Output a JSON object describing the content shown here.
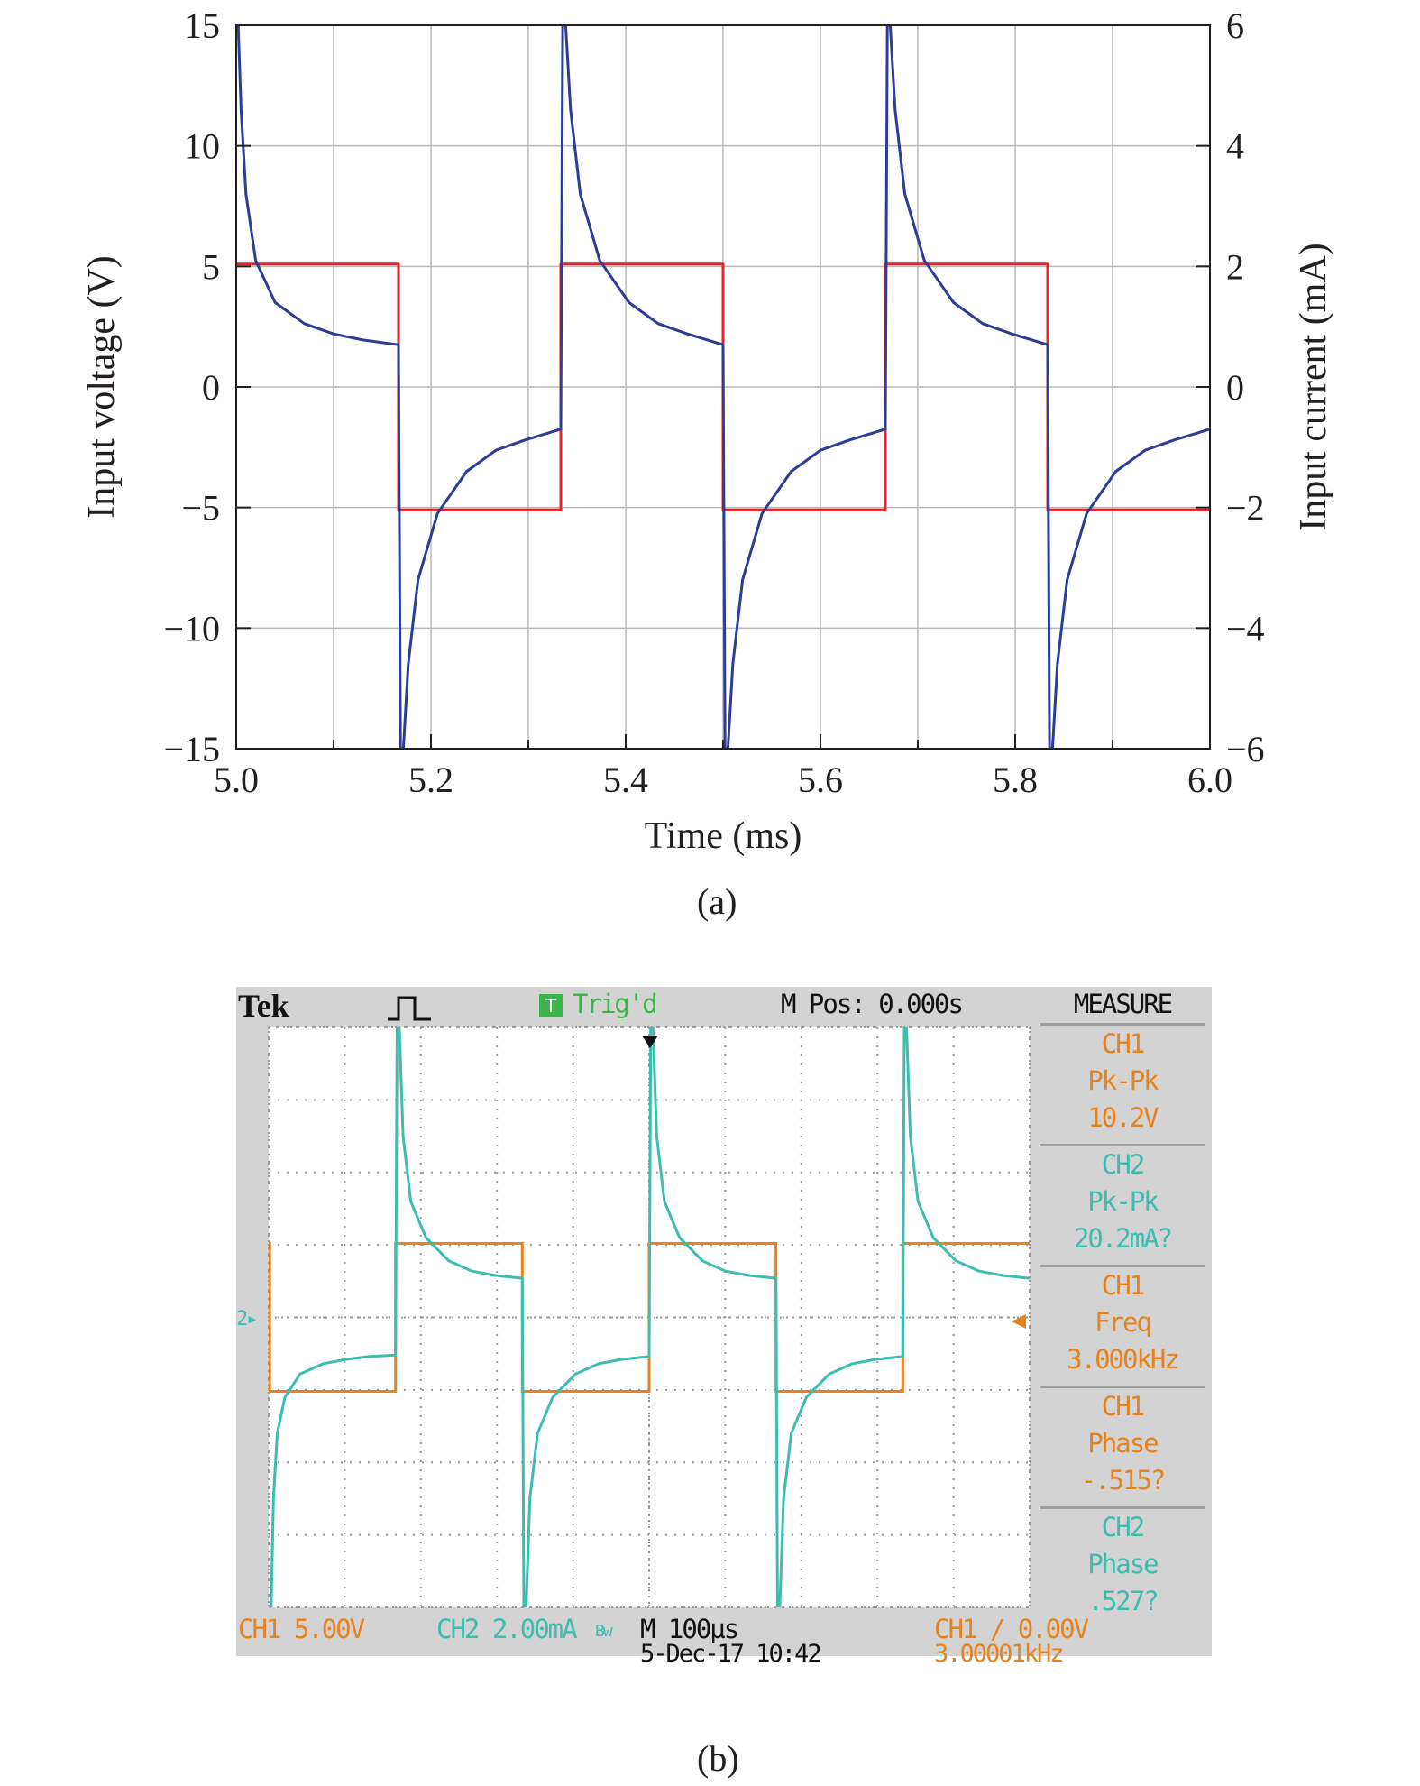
{
  "chart_data": [
    {
      "type": "line",
      "panel_label": "(a)",
      "xlabel": "Time (ms)",
      "ylabel": "Input voltage (V)",
      "y2label": "Input current (mA)",
      "xlim": [
        5.0,
        6.0
      ],
      "ylim": [
        -15,
        15
      ],
      "y2lim": [
        -6,
        6
      ],
      "xticks": [
        "5.0",
        "5.2",
        "5.4",
        "5.6",
        "5.8",
        "6.0"
      ],
      "yticks": [
        "15",
        "10",
        "5",
        "0",
        "−5",
        "−10",
        "−15"
      ],
      "y2ticks": [
        "6",
        "4",
        "2",
        "0",
        "−2",
        "−4",
        "−6"
      ],
      "grid": true,
      "series": [
        {
          "color": "#e3262b",
          "axis": "left",
          "x": [
            5.0,
            5.1667,
            5.1667,
            5.3333,
            5.3333,
            5.5,
            5.5,
            5.6667,
            5.6667,
            5.8333,
            5.8333,
            6.0
          ],
          "y": [
            5.1,
            5.1,
            -5.1,
            -5.1,
            5.1,
            5.1,
            -5.1,
            -5.1,
            5.1,
            5.1,
            -5.1,
            -5.1
          ]
        },
        {
          "color": "#2e3c96",
          "axis": "right",
          "x": [
            5.0,
            5.002,
            5.005,
            5.01,
            5.02,
            5.04,
            5.07,
            5.1,
            5.13,
            5.1667,
            5.1687,
            5.1717,
            5.1767,
            5.1867,
            5.2067,
            5.2367,
            5.2667,
            5.2967,
            5.3333,
            5.3353,
            5.3383,
            5.3433,
            5.3533,
            5.3733,
            5.4033,
            5.4333,
            5.4633,
            5.5,
            5.502,
            5.505,
            5.51,
            5.52,
            5.54,
            5.57,
            5.6,
            5.63,
            5.6667,
            5.6687,
            5.6717,
            5.6767,
            5.6867,
            5.7067,
            5.7367,
            5.7667,
            5.7967,
            5.8333,
            5.8353,
            5.8383,
            5.8433,
            5.8533,
            5.8733,
            5.9033,
            5.9333,
            5.9633,
            6.0
          ],
          "y": [
            6.0,
            6.0,
            4.6,
            3.2,
            2.1,
            1.4,
            1.05,
            0.88,
            0.78,
            0.7,
            -6.0,
            -6.0,
            -4.6,
            -3.2,
            -2.1,
            -1.4,
            -1.05,
            -0.88,
            -0.7,
            6.0,
            6.0,
            4.6,
            3.2,
            2.1,
            1.4,
            1.05,
            0.88,
            0.7,
            -6.0,
            -6.0,
            -4.6,
            -3.2,
            -2.1,
            -1.4,
            -1.05,
            -0.88,
            -0.7,
            6.0,
            6.0,
            4.6,
            3.2,
            2.1,
            1.4,
            1.05,
            0.88,
            0.7,
            -6.0,
            -6.0,
            -4.6,
            -3.2,
            -2.1,
            -1.4,
            -1.05,
            -0.88,
            -0.7
          ]
        }
      ]
    },
    {
      "type": "line",
      "panel_label": "(b)",
      "display": {
        "brand": "Tek",
        "trigger_status": "Trig'd",
        "trigger_icon": "T",
        "position": "M Pos: 0.000s",
        "ch1_scale": "CH1  5.00V",
        "ch2_scale": "CH2  2.00mA",
        "bw_mark": "Bw",
        "timebase": "M 100µs",
        "date": "5-Dec-17 10:42",
        "trigger_setting": "CH1 ∕ 0.00V",
        "trigger_freq": "3.00001kHz",
        "ch2_marker": "2▸"
      },
      "measure": {
        "title": "MEASURE",
        "items": [
          {
            "ch": "CH1",
            "label": "Pk-Pk",
            "value": "10.2V",
            "color": "#e5831e"
          },
          {
            "ch": "CH2",
            "label": "Pk-Pk",
            "value": "20.2mA?",
            "color": "#3cbdae"
          },
          {
            "ch": "CH1",
            "label": "Freq",
            "value": "3.000kHz",
            "color": "#e5831e"
          },
          {
            "ch": "CH1",
            "label": "Phase",
            "value": "-.515?",
            "color": "#e5831e"
          },
          {
            "ch": "CH2",
            "label": "Phase",
            "value": ".527?",
            "color": "#3cbdae"
          }
        ]
      },
      "xlim": [
        -0.5,
        0.5
      ],
      "ylim": [
        -4,
        4
      ],
      "x_unit": "divisions",
      "y_unit": "divisions",
      "grid": true,
      "series": [
        {
          "color": "#e5831e",
          "x": [
            -0.5,
            -0.4987,
            -0.4987,
            -0.3333,
            -0.3333,
            -0.1667,
            -0.1667,
            0.0,
            0.0,
            0.1667,
            0.1667,
            0.3333,
            0.3333,
            0.5
          ],
          "y": [
            1.02,
            1.02,
            -1.02,
            -1.02,
            1.02,
            1.02,
            -1.02,
            -1.02,
            1.02,
            1.02,
            -1.02,
            -1.02,
            1.02,
            1.02
          ],
          "scale": "5.00V/div"
        },
        {
          "color": "#3cbdae",
          "x": [
            -0.4987,
            -0.4967,
            -0.4937,
            -0.4887,
            -0.4787,
            -0.4587,
            -0.4287,
            -0.3987,
            -0.3687,
            -0.3333,
            -0.3313,
            -0.3283,
            -0.3233,
            -0.3133,
            -0.2933,
            -0.2633,
            -0.2333,
            -0.2033,
            -0.1667,
            -0.1647,
            -0.1617,
            -0.1567,
            -0.1467,
            -0.1267,
            -0.0967,
            -0.0667,
            -0.0367,
            0.0,
            0.002,
            0.005,
            0.01,
            0.02,
            0.04,
            0.07,
            0.1,
            0.13,
            0.1667,
            0.1687,
            0.1717,
            0.1767,
            0.1867,
            0.2067,
            0.2367,
            0.2667,
            0.2967,
            0.3333,
            0.3353,
            0.3383,
            0.3433,
            0.3533,
            0.3733,
            0.4033,
            0.4333,
            0.4633,
            0.5
          ],
          "y": [
            -4.0,
            -4.0,
            -2.5,
            -1.6,
            -1.1,
            -0.78,
            -0.64,
            -0.58,
            -0.54,
            -0.52,
            4.0,
            4.0,
            2.5,
            1.6,
            1.1,
            0.78,
            0.64,
            0.58,
            0.54,
            -4.0,
            -4.0,
            -2.5,
            -1.6,
            -1.1,
            -0.78,
            -0.64,
            -0.58,
            -0.54,
            4.0,
            4.0,
            2.5,
            1.6,
            1.1,
            0.78,
            0.64,
            0.58,
            0.54,
            -4.0,
            -4.0,
            -2.5,
            -1.6,
            -1.1,
            -0.78,
            -0.64,
            -0.58,
            -0.54,
            4.0,
            4.0,
            2.5,
            1.6,
            1.1,
            0.78,
            0.64,
            0.58,
            0.54
          ],
          "scale": "2.00mA/div"
        }
      ]
    }
  ]
}
